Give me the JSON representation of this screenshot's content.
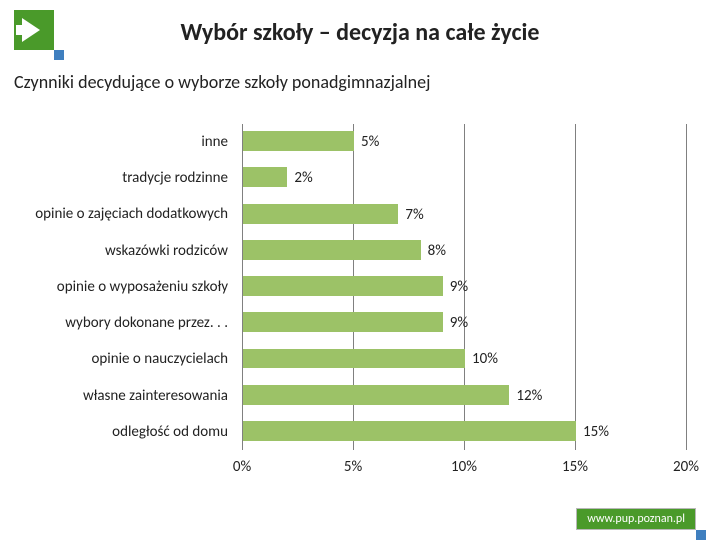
{
  "header": {
    "title": "Wybór szkoły – decyzja na całe życie",
    "subtitle": "Czynniki decydujące o wyborze szkoły ponadgimnazjalnej"
  },
  "chart": {
    "type": "bar",
    "orientation": "horizontal",
    "bar_color": "#9cc267",
    "grid_color": "#808080",
    "background_color": "#ffffff",
    "label_fontsize": 15,
    "value_fontsize": 15,
    "tick_fontsize": 15,
    "x": {
      "min": 0,
      "max": 20,
      "step": 5,
      "ticks": [
        {
          "v": 0,
          "label": "0%"
        },
        {
          "v": 5,
          "label": "5%"
        },
        {
          "v": 10,
          "label": "10%"
        },
        {
          "v": 15,
          "label": "15%"
        },
        {
          "v": 20,
          "label": "20%"
        }
      ]
    },
    "rows": [
      {
        "label": "inne",
        "value": 5,
        "value_label": "5%"
      },
      {
        "label": "tradycje rodzinne",
        "value": 2,
        "value_label": "2%"
      },
      {
        "label": "opinie o zajęciach dodatkowych",
        "value": 7,
        "value_label": "7%"
      },
      {
        "label": "wskazówki rodziców",
        "value": 8,
        "value_label": "8%"
      },
      {
        "label": "opinie o wyposażeniu szkoły",
        "value": 9,
        "value_label": "9%"
      },
      {
        "label": "wybory dokonane przez. . .",
        "value": 9,
        "value_label": "9%"
      },
      {
        "label": "opinie o nauczycielach",
        "value": 10,
        "value_label": "10%"
      },
      {
        "label": "własne zainteresowania",
        "value": 12,
        "value_label": "12%"
      },
      {
        "label": "odległość od domu",
        "value": 15,
        "value_label": "15%"
      }
    ]
  },
  "footer": {
    "badge": "www.pup.poznan.pl"
  },
  "colors": {
    "accent_green": "#4a9a2a",
    "accent_blue": "#3f7fbf",
    "text": "#222222"
  }
}
